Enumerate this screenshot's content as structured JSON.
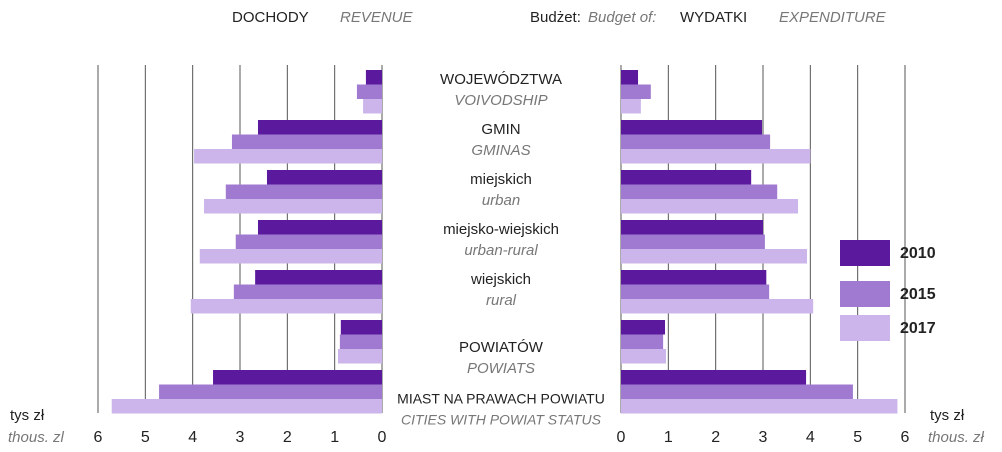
{
  "header": {
    "budget": "Budżet:",
    "budget_en": "Budget of:"
  },
  "chart_data": [
    {
      "type": "bar",
      "orientation": "horizontal",
      "x_reversed": true,
      "title": "DOCHODY",
      "subtitle": "REVENUE",
      "xlabel": "tys zł",
      "xlabel_en": "thous. zl",
      "categories": [
        "WOJEWÓDZTWA",
        "GMIN",
        "miejskich",
        "miejsko-wiejskich",
        "wiejskich",
        "POWIATÓW",
        "MIAST NA PRAWACH POWIATU"
      ],
      "categories_en": [
        "VOIVODSHIP",
        "GMINAS",
        "urban",
        "urban-rural",
        "rural",
        "POWIATS",
        "CITIES WITH POWIAT STATUS"
      ],
      "xlim": [
        0,
        6
      ],
      "xticks": [
        0,
        1,
        2,
        3,
        4,
        5,
        6
      ],
      "grid": true,
      "series": [
        {
          "name": "2010",
          "color": "#5b1a9e",
          "values": [
            0.34,
            2.62,
            2.43,
            2.62,
            2.68,
            0.87,
            3.57
          ]
        },
        {
          "name": "2015",
          "color": "#a07ad0",
          "values": [
            0.53,
            3.17,
            3.3,
            3.09,
            3.13,
            0.89,
            4.71
          ]
        },
        {
          "name": "2017",
          "color": "#cbb5ea",
          "values": [
            0.4,
            3.97,
            3.76,
            3.85,
            4.04,
            0.93,
            5.71
          ]
        }
      ]
    },
    {
      "type": "bar",
      "orientation": "horizontal",
      "x_reversed": false,
      "title": "WYDATKI",
      "subtitle": "EXPENDITURE",
      "xlabel": "tys zł",
      "xlabel_en": "thous. zł",
      "xlim": [
        0,
        6
      ],
      "xticks": [
        0,
        1,
        2,
        3,
        4,
        5,
        6
      ],
      "grid": true,
      "series": [
        {
          "name": "2010",
          "color": "#5b1a9e",
          "values": [
            0.36,
            2.98,
            2.75,
            3.0,
            3.07,
            0.93,
            3.91
          ]
        },
        {
          "name": "2015",
          "color": "#a07ad0",
          "values": [
            0.63,
            3.15,
            3.3,
            3.04,
            3.13,
            0.89,
            4.9
          ]
        },
        {
          "name": "2017",
          "color": "#cbb5ea",
          "values": [
            0.42,
            4.0,
            3.74,
            3.93,
            4.06,
            0.95,
            5.84
          ]
        }
      ]
    }
  ]
}
